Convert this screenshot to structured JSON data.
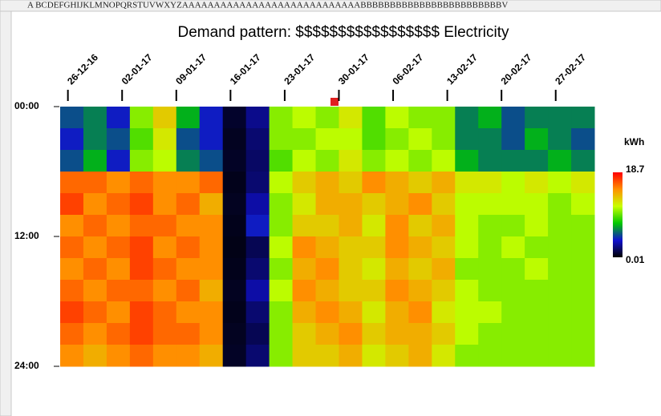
{
  "spreadsheet": {
    "column_headers": "A      BCDEFGHIJKLMNOPQRSTUVWXYZAAAAAAAAAAAAAAAAAAAAAAAAAAAABBBBBBBBBBBBBBBBBBBBBBBBV"
  },
  "chart_data": {
    "type": "heatmap",
    "title": "Demand pattern: $$$$$$$$$$$$$$$$$ Electricity",
    "xlim": [
      0,
      69
    ],
    "ylim": [
      0,
      24
    ],
    "xticks": [
      {
        "value": 1,
        "label": "26-12-16"
      },
      {
        "value": 8,
        "label": "02-01-17"
      },
      {
        "value": 15,
        "label": "09-01-17"
      },
      {
        "value": 22,
        "label": "16-01-17"
      },
      {
        "value": 29,
        "label": "23-01-17"
      },
      {
        "value": 36,
        "label": "30-01-17"
      },
      {
        "value": 43,
        "label": "06-02-17"
      },
      {
        "value": 50,
        "label": "13-02-17"
      },
      {
        "value": 57,
        "label": "20-02-17"
      },
      {
        "value": 64,
        "label": "27-02-17"
      }
    ],
    "yticks": [
      {
        "value": 0,
        "label": "00:00"
      },
      {
        "value": 12,
        "label": "12:00"
      },
      {
        "value": 24,
        "label": "24:00"
      }
    ],
    "colorbar_label": "kWh",
    "zlim": [
      0.01,
      18.7
    ],
    "zticks": [
      0.01,
      18.7
    ],
    "colormap": [
      "#000000",
      "#1010d0",
      "#00c800",
      "#c8ff00",
      "#ff9000",
      "#ff0000"
    ],
    "values": [
      [
        5,
        6,
        4,
        10,
        13,
        7,
        4,
        0.8,
        2.5,
        10,
        11,
        10,
        12,
        9,
        11,
        10,
        10,
        6,
        7,
        5,
        6,
        6,
        6
      ],
      [
        4,
        6,
        5,
        9,
        12,
        5,
        4,
        0.6,
        2,
        10,
        10,
        11,
        11,
        9,
        10,
        11,
        10,
        6,
        6,
        5,
        7,
        6,
        5
      ],
      [
        5,
        7,
        4,
        10,
        11,
        6,
        5,
        0.7,
        1.8,
        9,
        11,
        10,
        12,
        10,
        11,
        10,
        11,
        7,
        6,
        6,
        6,
        7,
        6
      ],
      [
        16,
        16,
        15,
        16,
        15,
        15,
        16,
        0.5,
        2,
        11,
        13,
        14,
        13,
        15,
        14,
        13,
        14,
        12,
        12,
        11,
        12,
        11,
        12
      ],
      [
        17,
        15,
        16,
        17,
        15,
        16,
        14,
        0.6,
        3,
        10,
        12,
        14,
        14,
        13,
        14,
        15,
        13,
        11,
        11,
        11,
        11,
        10,
        11
      ],
      [
        15,
        16,
        15,
        16,
        16,
        15,
        15,
        0.5,
        4,
        10,
        13,
        13,
        14,
        12,
        15,
        13,
        14,
        11,
        10,
        10,
        11,
        10,
        10
      ],
      [
        16,
        15,
        16,
        17,
        15,
        16,
        15,
        0.4,
        1.5,
        11,
        15,
        14,
        13,
        13,
        15,
        14,
        13,
        11,
        10,
        11,
        10,
        10,
        10
      ],
      [
        15,
        16,
        15,
        17,
        16,
        15,
        15,
        0.5,
        2,
        10,
        14,
        15,
        13,
        12,
        14,
        13,
        14,
        10,
        10,
        10,
        11,
        10,
        10
      ],
      [
        16,
        15,
        16,
        16,
        15,
        16,
        14,
        0.6,
        3,
        11,
        15,
        14,
        13,
        13,
        15,
        14,
        13,
        11,
        10,
        10,
        10,
        10,
        10
      ],
      [
        17,
        16,
        15,
        17,
        16,
        15,
        15,
        0.5,
        2,
        10,
        14,
        15,
        14,
        12,
        14,
        15,
        12,
        11,
        11,
        10,
        10,
        10,
        10
      ],
      [
        16,
        15,
        16,
        17,
        16,
        16,
        15,
        0.6,
        1.5,
        10,
        13,
        14,
        15,
        13,
        14,
        14,
        13,
        11,
        10,
        10,
        10,
        10,
        10
      ],
      [
        15,
        14,
        15,
        16,
        15,
        15,
        14,
        0.7,
        2,
        10,
        13,
        13,
        14,
        12,
        13,
        14,
        12,
        10,
        10,
        10,
        10,
        10,
        10
      ]
    ]
  }
}
